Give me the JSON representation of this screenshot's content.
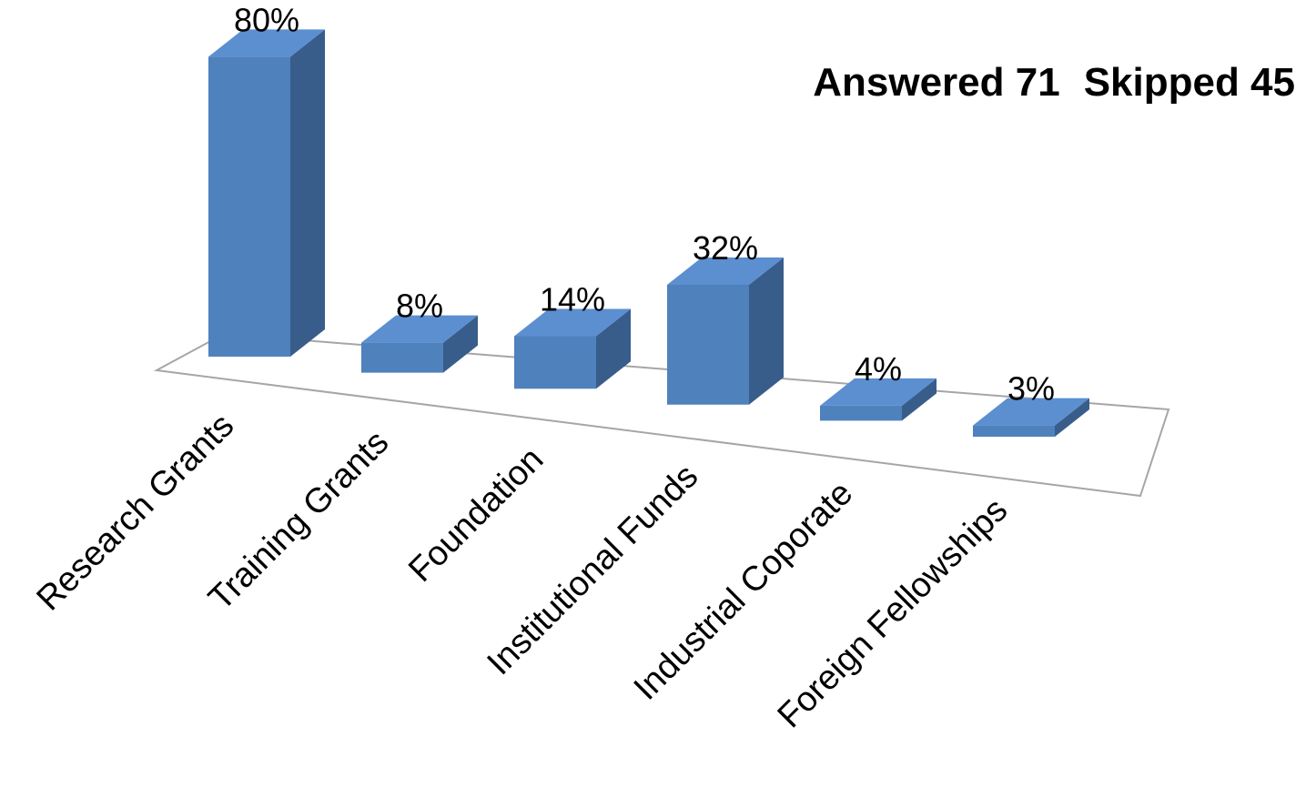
{
  "header": {
    "answered_label": "Answered 71",
    "skipped_label": "Skipped 45"
  },
  "chart_data": {
    "type": "bar",
    "style": "3d-column",
    "categories": [
      "Research Grants",
      "Training Grants",
      "Foundation",
      "Institutional Funds",
      "Industrial Coporate",
      "Foreign Fellowships"
    ],
    "values": [
      80,
      8,
      14,
      32,
      4,
      3
    ],
    "data_labels": [
      "80%",
      "8%",
      "14%",
      "32%",
      "4%",
      "3%"
    ],
    "unit": "%",
    "title": "",
    "xlabel": "",
    "ylabel": "",
    "grid": false,
    "legend": "none",
    "colors": {
      "front": "#4f81bd",
      "top": "#5b8fd0",
      "side": "#385d8a",
      "floor_line": "#a6a6a6",
      "label": "#000000"
    }
  }
}
